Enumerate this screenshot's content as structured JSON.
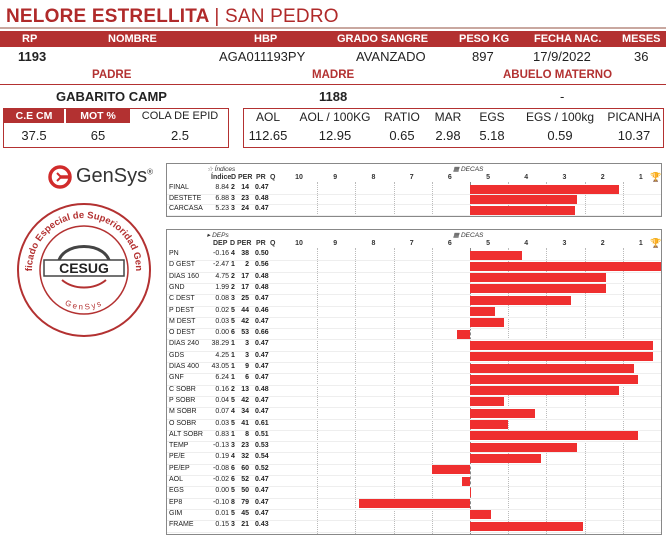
{
  "title": {
    "name": "NELORE ESTRELLITA",
    "sep": "|",
    "location": "SAN PEDRO"
  },
  "top_headers": [
    "RP",
    "NOMBRE",
    "HBP",
    "GRADO SANGRE",
    "PESO KG",
    "FECHA NAC.",
    "MESES"
  ],
  "top_values": [
    "1193",
    "",
    "AGA011193PY",
    "AVANZADO",
    "897",
    "17/9/2022",
    "36"
  ],
  "parents_headers": {
    "padre": "PADRE",
    "madre": "MADRE",
    "abuelo": "ABUELO MATERNO"
  },
  "parents_values": {
    "padre": "GABARITO CAMP",
    "madre": "1188",
    "abuelo": "-"
  },
  "meas_headers": [
    "C.E CM",
    "MOT %",
    "COLA DE EPID"
  ],
  "meas_values": [
    "37.5",
    "65",
    "2.5"
  ],
  "carc_headers": [
    "AOL",
    "AOL / 100KG",
    "RATIO",
    "MAR",
    "EGS",
    "EGS / 100kg",
    "PICANHA"
  ],
  "carc_values": [
    "112.65",
    "12.95",
    "0.65",
    "2.98",
    "5.18",
    "0.59",
    "10.37"
  ],
  "logos": {
    "gensys": "GenSys",
    "gensys_reg": "®",
    "seal_center": "CESUG",
    "seal_ring_top": "Certificado Especial de Superioridad Genética",
    "seal_ring_bottom": "GenSys"
  },
  "indices": {
    "title": "Índices",
    "decas_title": "DECAS",
    "col_headers": [
      "Índice",
      "D",
      "PER",
      "PR",
      "Q"
    ],
    "axis_labels": [
      "10",
      "9",
      "8",
      "7",
      "6",
      "5",
      "4",
      "3",
      "2",
      "1"
    ],
    "rows": [
      {
        "label": "FINAL",
        "value": "8.84",
        "d": "2",
        "per": "14",
        "pr": "0.47",
        "bar": 0.78
      },
      {
        "label": "DESTETE",
        "value": "6.88",
        "d": "3",
        "per": "23",
        "pr": "0.48",
        "bar": 0.56
      },
      {
        "label": "CARCASA",
        "value": "5.23",
        "d": "3",
        "per": "24",
        "pr": "0.47",
        "bar": 0.55
      }
    ]
  },
  "deps": {
    "title": "DEPs",
    "decas_title": "DECAS",
    "col_headers": [
      "DEP",
      "D",
      "PER",
      "PR",
      "Q"
    ],
    "axis_labels": [
      "10",
      "9",
      "8",
      "7",
      "6",
      "5",
      "4",
      "3",
      "2",
      "1"
    ],
    "rows": [
      {
        "label": "PN",
        "value": "-0.16",
        "d": "4",
        "per": "38",
        "pr": "0.50",
        "bar": 0.27
      },
      {
        "label": "D GEST",
        "value": "-2.47",
        "d": "1",
        "per": "2",
        "pr": "0.56",
        "bar": 1.0
      },
      {
        "label": "DIAS 160",
        "value": "4.75",
        "d": "2",
        "per": "17",
        "pr": "0.48",
        "bar": 0.71
      },
      {
        "label": "GND",
        "value": "1.99",
        "d": "2",
        "per": "17",
        "pr": "0.48",
        "bar": 0.71
      },
      {
        "label": "C DEST",
        "value": "0.08",
        "d": "3",
        "per": "25",
        "pr": "0.47",
        "bar": 0.53
      },
      {
        "label": "P DEST",
        "value": "0.02",
        "d": "5",
        "per": "44",
        "pr": "0.46",
        "bar": 0.13
      },
      {
        "label": "M DEST",
        "value": "0.03",
        "d": "5",
        "per": "42",
        "pr": "0.47",
        "bar": 0.18
      },
      {
        "label": "O DEST",
        "value": "0.00",
        "d": "6",
        "per": "53",
        "pr": "0.66",
        "bar": -0.07
      },
      {
        "label": "DIAS 240",
        "value": "38.29",
        "d": "1",
        "per": "3",
        "pr": "0.47",
        "bar": 0.96
      },
      {
        "label": "GDS",
        "value": "4.25",
        "d": "1",
        "per": "3",
        "pr": "0.47",
        "bar": 0.96
      },
      {
        "label": "DIAS 400",
        "value": "43.05",
        "d": "1",
        "per": "9",
        "pr": "0.47",
        "bar": 0.86
      },
      {
        "label": "GNF",
        "value": "6.24",
        "d": "1",
        "per": "6",
        "pr": "0.47",
        "bar": 0.88
      },
      {
        "label": "C SOBR",
        "value": "0.16",
        "d": "2",
        "per": "13",
        "pr": "0.48",
        "bar": 0.78
      },
      {
        "label": "P SOBR",
        "value": "0.04",
        "d": "5",
        "per": "42",
        "pr": "0.47",
        "bar": 0.18
      },
      {
        "label": "M SOBR",
        "value": "0.07",
        "d": "4",
        "per": "34",
        "pr": "0.47",
        "bar": 0.34
      },
      {
        "label": "O SOBR",
        "value": "0.03",
        "d": "5",
        "per": "41",
        "pr": "0.61",
        "bar": 0.2
      },
      {
        "label": "ALT SOBR",
        "value": "0.83",
        "d": "1",
        "per": "8",
        "pr": "0.51",
        "bar": 0.88
      },
      {
        "label": "TEMP",
        "value": "-0.13",
        "d": "3",
        "per": "23",
        "pr": "0.53",
        "bar": 0.56
      },
      {
        "label": "PE/E",
        "value": "0.19",
        "d": "4",
        "per": "32",
        "pr": "0.54",
        "bar": 0.37
      },
      {
        "label": "PE/EP",
        "value": "-0.08",
        "d": "6",
        "per": "60",
        "pr": "0.52",
        "bar": -0.2
      },
      {
        "label": "AOL",
        "value": "-0.02",
        "d": "6",
        "per": "52",
        "pr": "0.47",
        "bar": -0.04
      },
      {
        "label": "EGS",
        "value": "0.00",
        "d": "5",
        "per": "50",
        "pr": "0.47",
        "bar": 0.0
      },
      {
        "label": "EP8",
        "value": "-0.10",
        "d": "8",
        "per": "79",
        "pr": "0.47",
        "bar": -0.58
      },
      {
        "label": "GIM",
        "value": "0.01",
        "d": "5",
        "per": "45",
        "pr": "0.47",
        "bar": 0.11
      },
      {
        "label": "FRAME",
        "value": "0.15",
        "d": "3",
        "per": "21",
        "pr": "0.43",
        "bar": 0.59
      }
    ]
  }
}
